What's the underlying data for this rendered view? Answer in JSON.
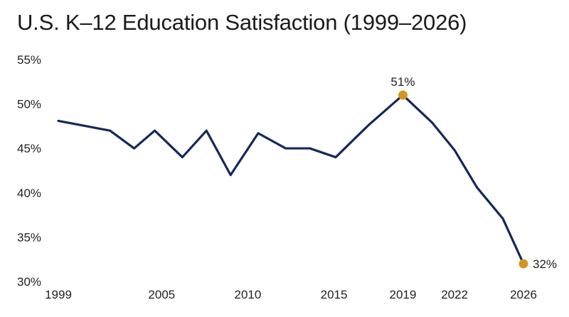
{
  "chart_data": {
    "type": "line",
    "title": "U.S. K–12 Education Satisfaction (1999–2026)",
    "xlabel": "",
    "ylabel": "",
    "xlim": [
      1999,
      2026
    ],
    "ylim": [
      30,
      55
    ],
    "x_ticks": [
      1999,
      2005,
      2010,
      2015,
      2019,
      2022,
      2026
    ],
    "y_ticks": [
      {
        "value": 30,
        "label": "30%"
      },
      {
        "value": 35,
        "label": "35%"
      },
      {
        "value": 40,
        "label": "40%"
      },
      {
        "value": 45,
        "label": "45%"
      },
      {
        "value": 50,
        "label": "50%"
      },
      {
        "value": 55,
        "label": "55%"
      }
    ],
    "grid": false,
    "series": [
      {
        "color": "#14295a",
        "points": [
          {
            "x": 1999,
            "y": 48.1
          },
          {
            "x": 2002,
            "y": 47.0
          },
          {
            "x": 2003.4,
            "y": 45.0
          },
          {
            "x": 2004.6,
            "y": 47.0
          },
          {
            "x": 2006.2,
            "y": 44.0
          },
          {
            "x": 2007.6,
            "y": 47.0
          },
          {
            "x": 2009.0,
            "y": 42.0
          },
          {
            "x": 2010.6,
            "y": 46.7
          },
          {
            "x": 2012.2,
            "y": 45.0
          },
          {
            "x": 2013.6,
            "y": 45.0
          },
          {
            "x": 2015.1,
            "y": 44.0
          },
          {
            "x": 2017.0,
            "y": 47.6
          },
          {
            "x": 2019,
            "y": 51.0
          },
          {
            "x": 2020.7,
            "y": 47.9
          },
          {
            "x": 2022,
            "y": 44.8
          },
          {
            "x": 2023.3,
            "y": 40.6
          },
          {
            "x": 2024.8,
            "y": 37.1
          },
          {
            "x": 2026,
            "y": 32.0
          }
        ]
      }
    ],
    "highlights": [
      {
        "x": 2019,
        "y": 51,
        "label": "51%",
        "color": "#d4961f",
        "label_position": "above"
      },
      {
        "x": 2026,
        "y": 32,
        "label": "32%",
        "color": "#d4961f",
        "label_position": "right"
      }
    ]
  }
}
